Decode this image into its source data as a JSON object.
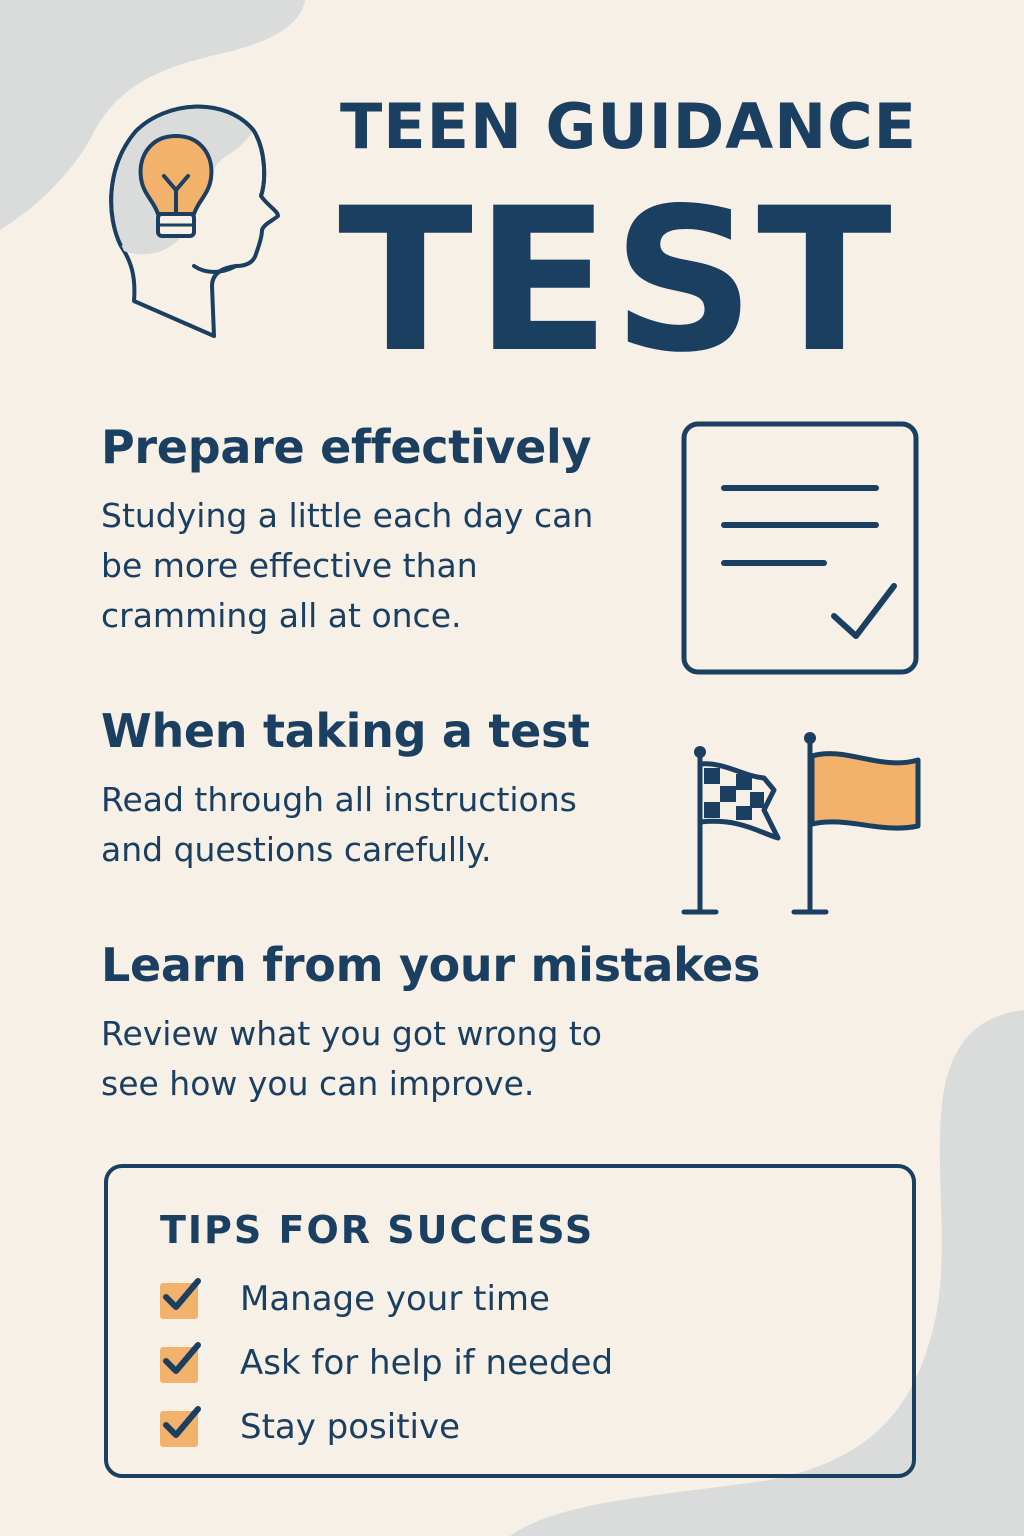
{
  "header": {
    "title_line1": "TEEN GUIDANCE",
    "title_line2": "TEST"
  },
  "sections": [
    {
      "heading": "Prepare effectively",
      "lines": [
        "Studying a little each day can",
        "be more effective than",
        "cramming all at once."
      ]
    },
    {
      "heading": "When taking a test",
      "lines": [
        "Read through all instructions",
        "and questions carefully."
      ]
    },
    {
      "heading": "Learn from your mistakes",
      "lines": [
        "Review what you got wrong to",
        "see how you can improve."
      ]
    }
  ],
  "tips": {
    "title": "TIPS FOR SUCCESS",
    "items": [
      "Manage your time",
      "Ask for help if needed",
      "Stay positive"
    ]
  },
  "icons": {
    "header": "head-lightbulb-icon",
    "prepare": "checklist-document-icon",
    "test": "flags-icon",
    "tips": "checked-checkbox-icon"
  },
  "colors": {
    "background": "#f6f0e6",
    "primary": "#1b3f60",
    "accent": "#f2b26b",
    "blob": "#d9dcda"
  }
}
